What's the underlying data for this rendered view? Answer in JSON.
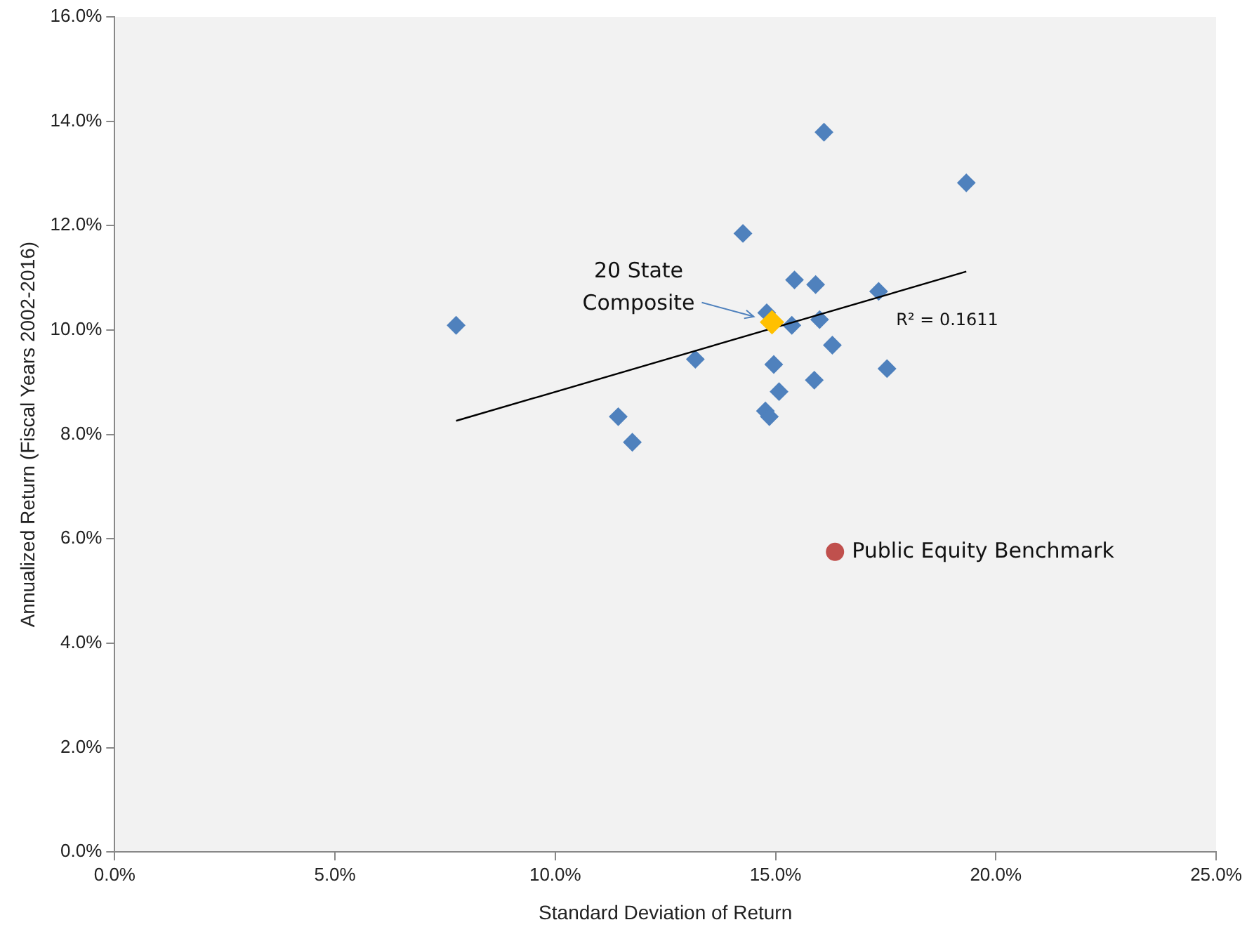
{
  "chart_data": {
    "type": "scatter",
    "xlabel": "Standard Deviation of Return",
    "ylabel": "Annualized Return (Fiscal Years 2002-2016)",
    "xlim": [
      0,
      25
    ],
    "xticks": [
      {
        "value": 0,
        "label": "0.0%"
      },
      {
        "value": 5,
        "label": "5.0%"
      },
      {
        "value": 10,
        "label": "10.0%"
      },
      {
        "value": 15,
        "label": "15.0%"
      },
      {
        "value": 20,
        "label": "20.0%"
      },
      {
        "value": 25,
        "label": "25.0%"
      }
    ],
    "ylim": [
      0,
      16
    ],
    "yticks": [
      {
        "value": 0,
        "label": "0.0%"
      },
      {
        "value": 2,
        "label": "2.0%"
      },
      {
        "value": 4,
        "label": "4.0%"
      },
      {
        "value": 6,
        "label": "6.0%"
      },
      {
        "value": 8,
        "label": "8.0%"
      },
      {
        "value": 10,
        "label": "10.0%"
      },
      {
        "value": 12,
        "label": "12.0%"
      },
      {
        "value": 14,
        "label": "14.0%"
      },
      {
        "value": 16,
        "label": "16.0%"
      }
    ],
    "grid": false,
    "legend": false,
    "series": [
      {
        "color": "#4f81bd",
        "marker": "diamond",
        "x": [
          7.75,
          11.43,
          11.75,
          13.18,
          14.26,
          14.77,
          14.86,
          14.8,
          14.96,
          15.08,
          15.37,
          15.43,
          15.88,
          15.91,
          16.0,
          16.1,
          16.29,
          17.34,
          17.53,
          19.33
        ],
        "values": [
          10.09,
          8.34,
          7.85,
          9.44,
          11.85,
          8.45,
          8.34,
          10.33,
          9.34,
          8.82,
          10.09,
          10.96,
          9.04,
          10.87,
          10.2,
          13.79,
          9.71,
          10.74,
          9.26,
          12.82
        ]
      },
      {
        "type": "line",
        "color": "#000000",
        "marker": "none",
        "x": [
          7.75,
          19.33
        ],
        "values": [
          8.26,
          11.12
        ]
      },
      {
        "name": "20 State Composite",
        "color": "#ffc000",
        "marker": "diamond",
        "x": [
          14.92
        ],
        "values": [
          10.15
        ]
      },
      {
        "name": "Public Equity Benchmark",
        "color": "#c0504d",
        "marker": "circle",
        "x": [
          16.35
        ],
        "values": [
          5.75
        ]
      }
    ],
    "annotations": [
      "R² = 0.1611"
    ]
  }
}
